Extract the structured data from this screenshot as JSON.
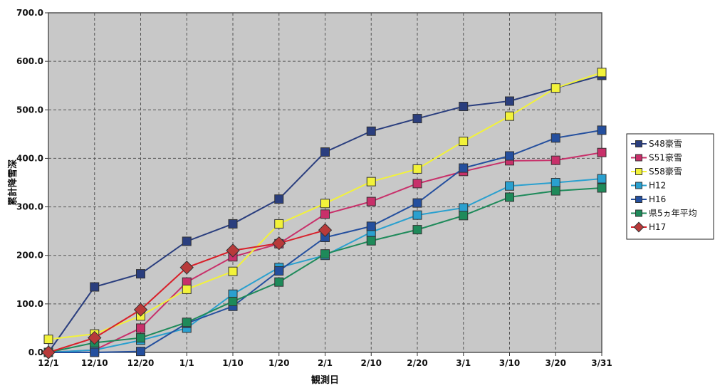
{
  "chart_data": {
    "type": "line",
    "title": "",
    "xlabel": "観測日",
    "ylabel": "累計降雪深",
    "ylim": [
      0,
      700
    ],
    "yticks": [
      "0.0",
      "100.0",
      "200.0",
      "300.0",
      "400.0",
      "500.0",
      "600.0",
      "700.0"
    ],
    "categories": [
      "12/1",
      "12/10",
      "12/20",
      "1/1",
      "1/10",
      "1/20",
      "2/1",
      "2/10",
      "2/20",
      "3/1",
      "3/10",
      "3/20",
      "3/31"
    ],
    "grid": true,
    "legend_position": "right",
    "plot_background": "#c8c8c8",
    "series": [
      {
        "name": "S48豪雪",
        "color": "#2a3e7e",
        "marker": "square",
        "fill": "#2a3e7e",
        "values": [
          0,
          135,
          162,
          229,
          265,
          316,
          413,
          456,
          482,
          507,
          518,
          545,
          571
        ]
      },
      {
        "name": "S51豪雪",
        "color": "#c8306a",
        "marker": "square",
        "fill": "#c8306a",
        "values": [
          0,
          5,
          50,
          145,
          197,
          224,
          285,
          311,
          348,
          373,
          395,
          396,
          412
        ]
      },
      {
        "name": "S58豪雪",
        "color": "#f2f23a",
        "marker": "square",
        "fill": "#f2f23a",
        "values": [
          27,
          38,
          75,
          130,
          167,
          265,
          307,
          352,
          378,
          435,
          487,
          545,
          577
        ]
      },
      {
        "name": "H12",
        "color": "#2aa0cf",
        "marker": "square",
        "fill": "#2aa0cf",
        "values": [
          0,
          5,
          25,
          50,
          120,
          175,
          200,
          248,
          283,
          298,
          343,
          350,
          358
        ]
      },
      {
        "name": "H16",
        "color": "#244f9e",
        "marker": "square",
        "fill": "#244f9e",
        "values": [
          0,
          0,
          2,
          60,
          95,
          168,
          237,
          260,
          308,
          380,
          405,
          442,
          458
        ]
      },
      {
        "name": "県5ヵ年平均",
        "color": "#1e8a5a",
        "marker": "square",
        "fill": "#1e8a5a",
        "values": [
          0,
          20,
          30,
          62,
          105,
          145,
          203,
          230,
          253,
          282,
          320,
          333,
          339
        ]
      },
      {
        "name": "H17",
        "color": "#d8202a",
        "marker": "diamond",
        "fill": "#b83a3a",
        "values": [
          0,
          30,
          88,
          175,
          210,
          225,
          252,
          null,
          null,
          null,
          null,
          null,
          null
        ]
      }
    ]
  }
}
